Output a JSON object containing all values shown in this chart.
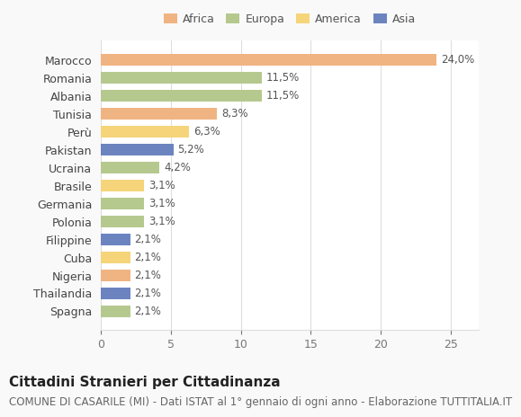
{
  "countries": [
    "Marocco",
    "Romania",
    "Albania",
    "Tunisia",
    "Perù",
    "Pakistan",
    "Ucraina",
    "Brasile",
    "Germania",
    "Polonia",
    "Filippine",
    "Cuba",
    "Nigeria",
    "Thailandia",
    "Spagna"
  ],
  "values": [
    24.0,
    11.5,
    11.5,
    8.3,
    6.3,
    5.2,
    4.2,
    3.1,
    3.1,
    3.1,
    2.1,
    2.1,
    2.1,
    2.1,
    2.1
  ],
  "labels": [
    "24,0%",
    "11,5%",
    "11,5%",
    "8,3%",
    "6,3%",
    "5,2%",
    "4,2%",
    "3,1%",
    "3,1%",
    "3,1%",
    "2,1%",
    "2,1%",
    "2,1%",
    "2,1%",
    "2,1%"
  ],
  "colors": [
    "#f0b482",
    "#b5c98e",
    "#b5c98e",
    "#f0b482",
    "#f5d47a",
    "#6b84c0",
    "#b5c98e",
    "#f5d47a",
    "#b5c98e",
    "#b5c98e",
    "#6b84c0",
    "#f5d47a",
    "#f0b482",
    "#6b84c0",
    "#b5c98e"
  ],
  "continent": [
    "Africa",
    "Europa",
    "Europa",
    "Africa",
    "America",
    "Asia",
    "Europa",
    "America",
    "Europa",
    "Europa",
    "Asia",
    "America",
    "Africa",
    "Asia",
    "Europa"
  ],
  "legend_labels": [
    "Africa",
    "Europa",
    "America",
    "Asia"
  ],
  "legend_colors": [
    "#f0b482",
    "#b5c98e",
    "#f5d47a",
    "#6b84c0"
  ],
  "title": "Cittadini Stranieri per Cittadinanza",
  "subtitle": "COMUNE DI CASARILE (MI) - Dati ISTAT al 1° gennaio di ogni anno - Elaborazione TUTTITALIA.IT",
  "xlabel": "",
  "xlim": [
    0,
    27
  ],
  "xticks": [
    0,
    5,
    10,
    15,
    20,
    25
  ],
  "background_color": "#f9f9f9",
  "bar_background": "#ffffff",
  "grid_color": "#dddddd",
  "title_fontsize": 11,
  "subtitle_fontsize": 8.5,
  "tick_fontsize": 9,
  "label_fontsize": 8.5
}
